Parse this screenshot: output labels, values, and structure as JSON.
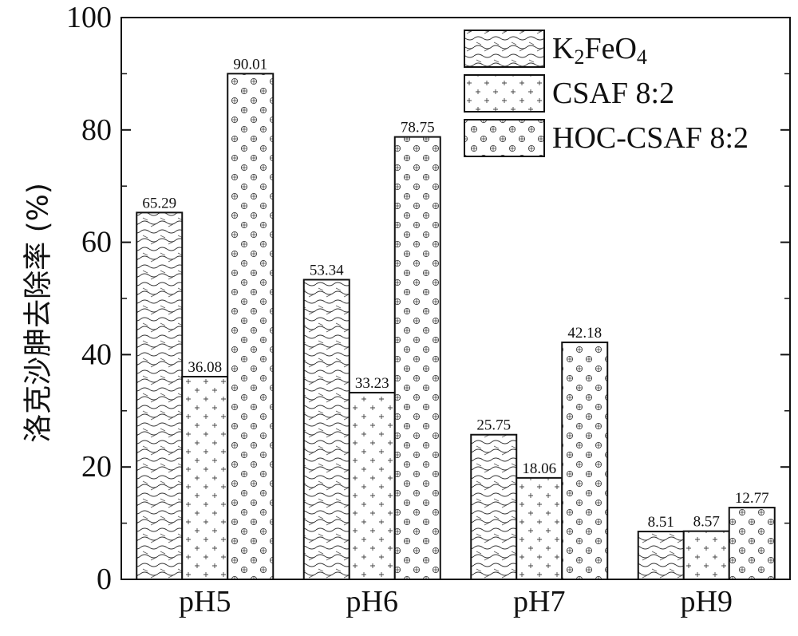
{
  "chart_data": {
    "type": "bar",
    "ylabel": "洛克沙胂去除率 (%)",
    "xlabel": "",
    "ylim": [
      0,
      100
    ],
    "yticks": [
      0,
      20,
      40,
      60,
      80,
      100
    ],
    "categories": [
      "pH5",
      "pH6",
      "pH7",
      "pH9"
    ],
    "series": [
      {
        "name": "K2FeO4",
        "legend_main": "K",
        "legend_parts": [
          "2",
          "FeO",
          "4"
        ],
        "pattern": "wave",
        "values": [
          65.29,
          53.34,
          25.75,
          8.51
        ]
      },
      {
        "name": "CSAF 8:2",
        "legend_main": "CSAF 8:2",
        "pattern": "plus",
        "values": [
          36.08,
          33.23,
          18.06,
          8.57
        ]
      },
      {
        "name": "HOC-CSAF 8:2",
        "legend_main": "HOC-CSAF 8:2",
        "pattern": "circle-plus",
        "values": [
          90.01,
          78.75,
          42.18,
          12.77
        ]
      }
    ],
    "data_labels": true,
    "grid": false,
    "legend_position": "top-right"
  }
}
